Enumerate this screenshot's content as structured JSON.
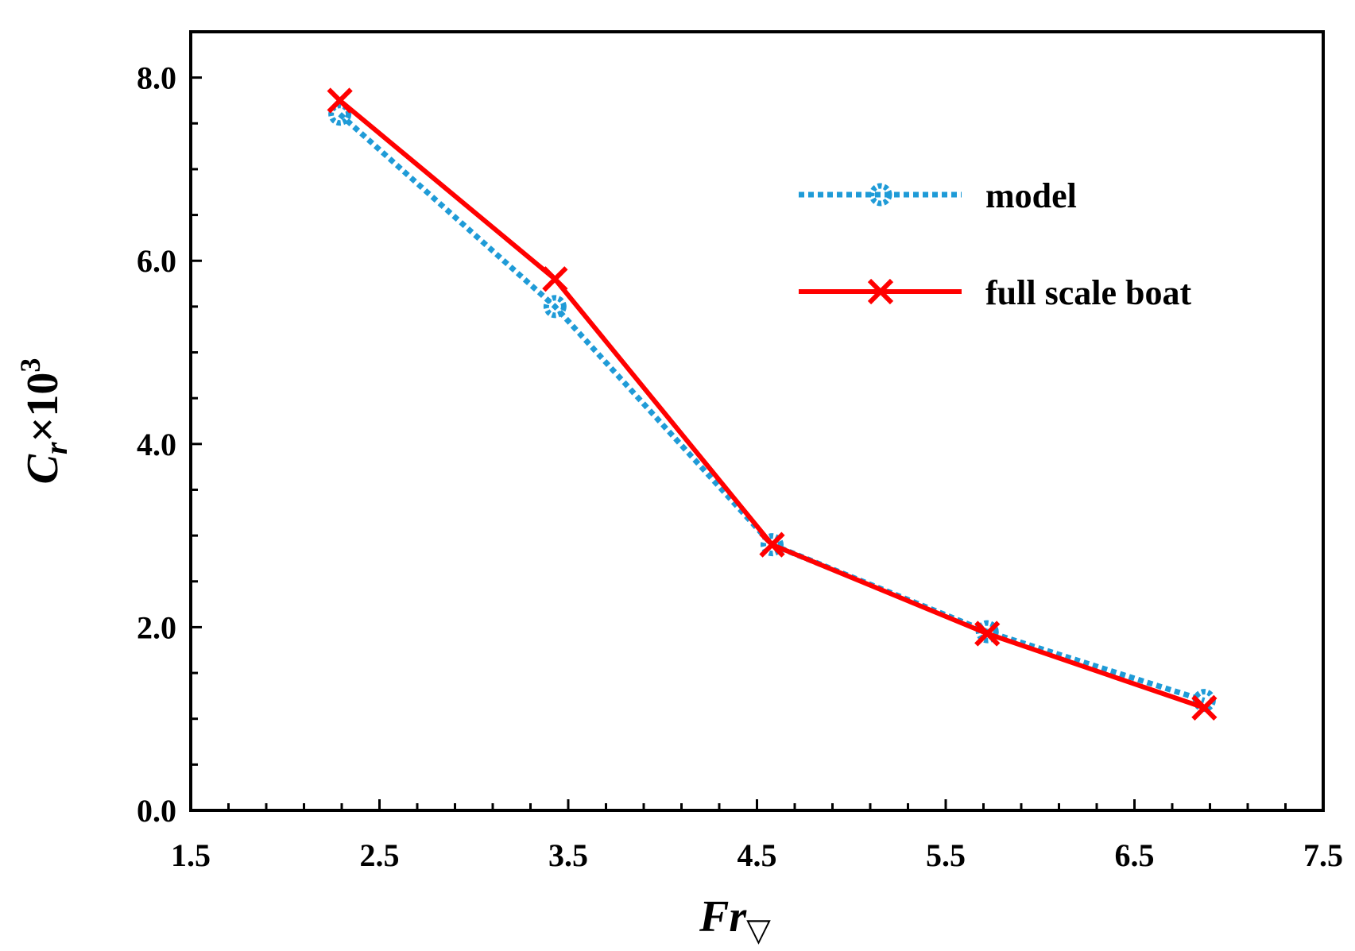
{
  "chart_data": {
    "type": "line",
    "title": "",
    "xlabel": {
      "main": "Fr",
      "sub": "▽"
    },
    "ylabel": {
      "main": "C",
      "sub": "r",
      "mid": "×10",
      "sup": "3"
    },
    "xlim": [
      1.5,
      7.5
    ],
    "ylim": [
      0.0,
      8.5
    ],
    "x_ticks": [
      "1.5",
      "2.5",
      "3.5",
      "4.5",
      "5.5",
      "6.5",
      "7.5"
    ],
    "y_ticks": [
      "0.0",
      "2.0",
      "4.0",
      "6.0",
      "8.0"
    ],
    "legend_position": "top-right",
    "series": [
      {
        "name": "model",
        "color": "#1f9bd7",
        "style": "dotted",
        "marker": "circle",
        "x": [
          2.29,
          3.43,
          4.58,
          5.72,
          6.87
        ],
        "y": [
          7.6,
          5.5,
          2.9,
          1.95,
          1.2
        ]
      },
      {
        "name": "full scale boat",
        "color": "#ff0000",
        "style": "solid",
        "marker": "x",
        "x": [
          2.29,
          3.43,
          4.58,
          5.72,
          6.87
        ],
        "y": [
          7.75,
          5.8,
          2.9,
          1.93,
          1.12
        ]
      }
    ]
  }
}
